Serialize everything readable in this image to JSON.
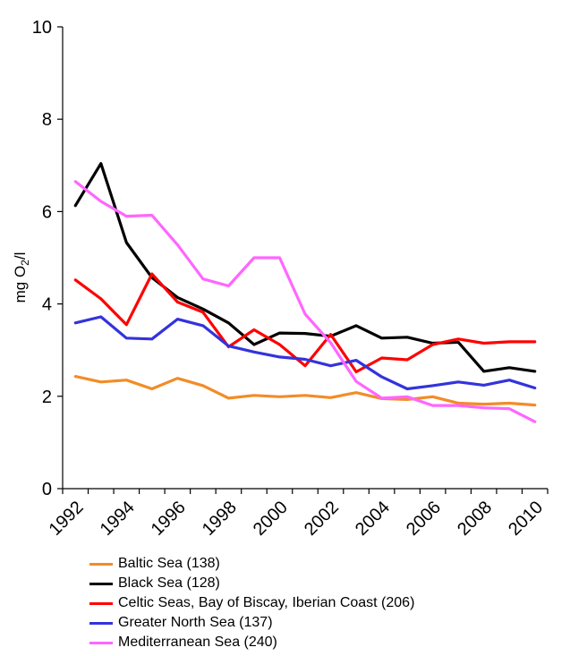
{
  "chart_data": {
    "type": "line",
    "title": "",
    "xlabel": "",
    "ylabel": "mg O",
    "ylabel_sub": "2",
    "ylabel_suffix": "/l",
    "ylim": [
      0,
      10
    ],
    "yticks": [
      0,
      2,
      4,
      6,
      8,
      10
    ],
    "xlim": [
      1991.5,
      2010.5
    ],
    "xticks": [
      "1992",
      "1994",
      "1996",
      "1998",
      "2000",
      "2002",
      "2004",
      "2006",
      "2008",
      "2010"
    ],
    "x": [
      1992,
      1993,
      1994,
      1995,
      1996,
      1997,
      1998,
      1999,
      2000,
      2001,
      2002,
      2003,
      2004,
      2005,
      2006,
      2007,
      2008,
      2009,
      2010
    ],
    "grid": false,
    "legend_position": "bottom",
    "series": [
      {
        "name": "Baltic Sea (138)",
        "color": "#F28C28",
        "values": [
          2.43,
          2.31,
          2.35,
          2.16,
          2.39,
          2.23,
          1.96,
          2.02,
          1.99,
          2.02,
          1.97,
          2.08,
          1.95,
          1.93,
          1.99,
          1.85,
          1.83,
          1.85,
          1.81
        ]
      },
      {
        "name": "Black Sea (128)",
        "color": "#000000",
        "values": [
          6.13,
          7.04,
          5.33,
          4.57,
          4.14,
          3.89,
          3.59,
          3.12,
          3.37,
          3.36,
          3.3,
          3.53,
          3.26,
          3.28,
          3.15,
          3.17,
          2.54,
          2.62,
          2.54
        ]
      },
      {
        "name": "Celtic Seas, Bay of Biscay, Iberian Coast (206)",
        "color": "#FF0000",
        "values": [
          4.52,
          4.11,
          3.55,
          4.65,
          4.04,
          3.82,
          3.07,
          3.44,
          3.12,
          2.66,
          3.34,
          2.53,
          2.83,
          2.79,
          3.12,
          3.24,
          3.15,
          3.18,
          3.18
        ]
      },
      {
        "name": "Greater North Sea (137)",
        "color": "#3333DD",
        "values": [
          3.59,
          3.72,
          3.26,
          3.24,
          3.67,
          3.53,
          3.09,
          2.96,
          2.85,
          2.8,
          2.66,
          2.78,
          2.42,
          2.16,
          2.23,
          2.31,
          2.24,
          2.35,
          2.18
        ]
      },
      {
        "name": "Mediterranean Sea (240)",
        "color": "#FF66FF",
        "values": [
          6.65,
          6.22,
          5.9,
          5.92,
          5.28,
          4.54,
          4.39,
          5.0,
          5.0,
          3.78,
          3.16,
          2.32,
          1.96,
          1.99,
          1.8,
          1.8,
          1.75,
          1.73,
          1.45
        ]
      }
    ]
  }
}
